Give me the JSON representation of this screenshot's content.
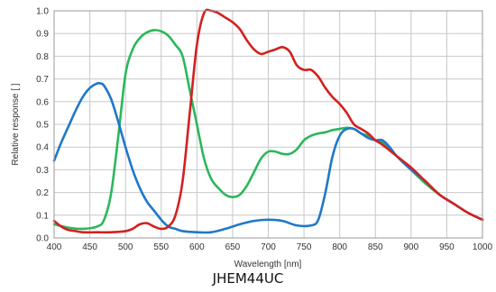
{
  "caption": "JHEM44UC",
  "chart_data": {
    "type": "line",
    "xlabel": "Wavelength [nm]",
    "ylabel": "Relative response [ ]",
    "xlim": [
      400,
      1000
    ],
    "ylim": [
      0,
      1.0
    ],
    "xticks": [
      400,
      450,
      500,
      550,
      600,
      650,
      700,
      750,
      800,
      850,
      900,
      950,
      1000
    ],
    "yticks": [
      0.0,
      0.1,
      0.2,
      0.3,
      0.4,
      0.5,
      0.6,
      0.7,
      0.8,
      0.9,
      1.0
    ],
    "grid": true,
    "series": [
      {
        "color": "#1f78c8",
        "points": [
          [
            400,
            0.34
          ],
          [
            410,
            0.42
          ],
          [
            420,
            0.49
          ],
          [
            430,
            0.56
          ],
          [
            440,
            0.62
          ],
          [
            450,
            0.66
          ],
          [
            460,
            0.68
          ],
          [
            465,
            0.68
          ],
          [
            470,
            0.67
          ],
          [
            480,
            0.61
          ],
          [
            490,
            0.51
          ],
          [
            500,
            0.4
          ],
          [
            510,
            0.3
          ],
          [
            520,
            0.22
          ],
          [
            530,
            0.16
          ],
          [
            540,
            0.12
          ],
          [
            550,
            0.08
          ],
          [
            560,
            0.05
          ],
          [
            570,
            0.04
          ],
          [
            580,
            0.03
          ],
          [
            600,
            0.025
          ],
          [
            620,
            0.025
          ],
          [
            640,
            0.04
          ],
          [
            660,
            0.06
          ],
          [
            680,
            0.075
          ],
          [
            700,
            0.08
          ],
          [
            720,
            0.075
          ],
          [
            740,
            0.055
          ],
          [
            760,
            0.055
          ],
          [
            770,
            0.08
          ],
          [
            780,
            0.2
          ],
          [
            790,
            0.36
          ],
          [
            800,
            0.45
          ],
          [
            810,
            0.48
          ],
          [
            820,
            0.48
          ],
          [
            830,
            0.46
          ],
          [
            840,
            0.44
          ],
          [
            850,
            0.43
          ],
          [
            860,
            0.43
          ],
          [
            870,
            0.4
          ],
          [
            880,
            0.36
          ],
          [
            900,
            0.3
          ],
          [
            920,
            0.25
          ],
          [
            940,
            0.19
          ],
          [
            960,
            0.15
          ],
          [
            980,
            0.11
          ],
          [
            1000,
            0.08
          ]
        ]
      },
      {
        "color": "#2ab85a",
        "points": [
          [
            400,
            0.06
          ],
          [
            420,
            0.045
          ],
          [
            440,
            0.04
          ],
          [
            460,
            0.05
          ],
          [
            470,
            0.08
          ],
          [
            480,
            0.2
          ],
          [
            490,
            0.45
          ],
          [
            500,
            0.72
          ],
          [
            510,
            0.83
          ],
          [
            520,
            0.88
          ],
          [
            530,
            0.905
          ],
          [
            540,
            0.915
          ],
          [
            550,
            0.91
          ],
          [
            560,
            0.89
          ],
          [
            570,
            0.85
          ],
          [
            580,
            0.8
          ],
          [
            590,
            0.65
          ],
          [
            600,
            0.5
          ],
          [
            610,
            0.35
          ],
          [
            620,
            0.26
          ],
          [
            630,
            0.22
          ],
          [
            640,
            0.19
          ],
          [
            650,
            0.18
          ],
          [
            660,
            0.19
          ],
          [
            670,
            0.23
          ],
          [
            680,
            0.29
          ],
          [
            690,
            0.35
          ],
          [
            700,
            0.38
          ],
          [
            710,
            0.38
          ],
          [
            720,
            0.37
          ],
          [
            730,
            0.37
          ],
          [
            740,
            0.39
          ],
          [
            750,
            0.43
          ],
          [
            760,
            0.45
          ],
          [
            770,
            0.46
          ],
          [
            780,
            0.465
          ],
          [
            790,
            0.475
          ],
          [
            800,
            0.48
          ],
          [
            810,
            0.485
          ],
          [
            820,
            0.48
          ],
          [
            830,
            0.46
          ],
          [
            840,
            0.45
          ],
          [
            850,
            0.43
          ],
          [
            860,
            0.42
          ],
          [
            880,
            0.36
          ],
          [
            900,
            0.3
          ],
          [
            920,
            0.24
          ],
          [
            940,
            0.19
          ],
          [
            960,
            0.15
          ],
          [
            980,
            0.11
          ],
          [
            1000,
            0.08
          ]
        ]
      },
      {
        "color": "#d42020",
        "points": [
          [
            400,
            0.075
          ],
          [
            410,
            0.05
          ],
          [
            420,
            0.035
          ],
          [
            430,
            0.03
          ],
          [
            440,
            0.025
          ],
          [
            460,
            0.025
          ],
          [
            480,
            0.025
          ],
          [
            500,
            0.03
          ],
          [
            510,
            0.04
          ],
          [
            520,
            0.06
          ],
          [
            530,
            0.065
          ],
          [
            540,
            0.05
          ],
          [
            550,
            0.04
          ],
          [
            560,
            0.05
          ],
          [
            570,
            0.1
          ],
          [
            580,
            0.25
          ],
          [
            590,
            0.55
          ],
          [
            600,
            0.85
          ],
          [
            610,
            0.99
          ],
          [
            620,
            1.0
          ],
          [
            630,
            0.99
          ],
          [
            640,
            0.97
          ],
          [
            650,
            0.95
          ],
          [
            660,
            0.92
          ],
          [
            670,
            0.87
          ],
          [
            680,
            0.83
          ],
          [
            690,
            0.81
          ],
          [
            700,
            0.82
          ],
          [
            710,
            0.83
          ],
          [
            720,
            0.84
          ],
          [
            730,
            0.82
          ],
          [
            740,
            0.76
          ],
          [
            750,
            0.74
          ],
          [
            760,
            0.74
          ],
          [
            770,
            0.71
          ],
          [
            780,
            0.66
          ],
          [
            790,
            0.62
          ],
          [
            800,
            0.59
          ],
          [
            810,
            0.55
          ],
          [
            820,
            0.5
          ],
          [
            830,
            0.48
          ],
          [
            840,
            0.46
          ],
          [
            850,
            0.43
          ],
          [
            860,
            0.41
          ],
          [
            880,
            0.36
          ],
          [
            900,
            0.31
          ],
          [
            920,
            0.25
          ],
          [
            940,
            0.19
          ],
          [
            960,
            0.15
          ],
          [
            980,
            0.11
          ],
          [
            1000,
            0.08
          ]
        ]
      }
    ]
  }
}
